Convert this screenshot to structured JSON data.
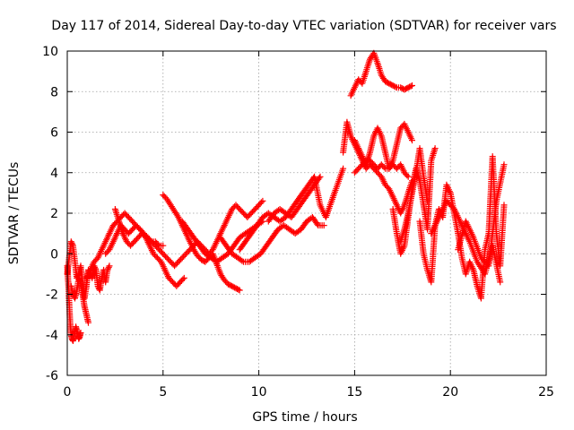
{
  "chart_data": {
    "type": "scatter",
    "title": "Day 117 of 2014, Sidereal Day-to-day VTEC variation (SDTVAR) for receiver vars",
    "xlabel": "GPS time / hours",
    "ylabel": "SDTVAR / TECUs",
    "xlim": [
      0,
      25
    ],
    "ylim": [
      -6,
      10
    ],
    "xticks": [
      0,
      5,
      10,
      15,
      20,
      25
    ],
    "yticks": [
      -6,
      -4,
      -2,
      0,
      2,
      4,
      6,
      8,
      10
    ],
    "xtick_labels": [
      "0",
      "5",
      "10",
      "15",
      "20",
      "25"
    ],
    "ytick_labels": [
      "-6",
      "-4",
      "-2",
      "0",
      "2",
      "4",
      "6",
      "8",
      "10"
    ],
    "grid": true,
    "marker": "+",
    "series": [
      {
        "name": "vars",
        "color": "#ff0000",
        "tracks": [
          {
            "x": [
              0.0,
              0.1,
              0.2,
              0.3,
              0.4,
              0.5,
              0.6,
              0.7,
              0.8,
              0.9,
              1.0,
              1.1,
              1.2,
              1.3,
              1.4,
              1.5,
              1.6,
              1.7,
              1.8,
              1.9,
              2.0,
              2.1,
              2.2
            ],
            "y": [
              -1.0,
              -0.2,
              0.6,
              0.4,
              -0.4,
              -1.2,
              -1.0,
              -0.6,
              -1.4,
              -2.2,
              -1.6,
              -0.8,
              -1.0,
              -1.2,
              -0.6,
              -0.8,
              -1.6,
              -1.8,
              -1.2,
              -0.8,
              -1.4,
              -0.8,
              -0.6
            ]
          },
          {
            "x": [
              0.0,
              0.05,
              0.1,
              0.15,
              0.2,
              0.25,
              0.3,
              0.35,
              0.4,
              0.45,
              0.5,
              0.55,
              0.6,
              0.65,
              0.7
            ],
            "y": [
              -0.6,
              -1.4,
              -2.4,
              -3.4,
              -4.0,
              -4.2,
              -4.3,
              -4.1,
              -3.8,
              -3.6,
              -3.8,
              -4.0,
              -4.2,
              -4.1,
              -3.9
            ]
          },
          {
            "x": [
              0.2,
              0.3,
              0.4,
              0.5,
              0.6,
              0.7,
              0.8,
              0.9,
              1.0,
              1.1
            ],
            "y": [
              -1.6,
              -2.0,
              -2.2,
              -1.8,
              -1.2,
              -1.4,
              -2.0,
              -2.6,
              -3.0,
              -3.4
            ]
          },
          {
            "x": [
              1.0,
              1.2,
              1.4,
              1.6,
              1.8,
              2.0,
              2.2,
              2.4,
              2.6,
              2.8,
              3.0,
              3.2,
              3.4,
              3.6,
              3.8,
              4.0,
              4.2,
              4.4,
              4.6,
              4.8,
              5.0,
              5.2,
              5.4,
              5.6,
              5.8,
              6.0,
              6.2,
              6.4,
              6.6,
              6.8,
              7.0,
              7.2,
              7.4,
              7.6,
              7.8,
              8.0,
              8.2,
              8.4,
              8.6,
              8.8,
              9.0,
              9.2,
              9.4,
              9.6,
              9.8,
              10.0,
              10.2
            ],
            "y": [
              -1.2,
              -0.8,
              -0.4,
              -0.2,
              0.2,
              0.6,
              1.0,
              1.4,
              1.6,
              1.8,
              2.0,
              1.8,
              1.6,
              1.4,
              1.2,
              1.0,
              0.8,
              0.6,
              0.4,
              0.2,
              0.0,
              -0.2,
              -0.4,
              -0.6,
              -0.4,
              -0.2,
              0.0,
              0.2,
              0.4,
              0.6,
              0.4,
              0.2,
              0.0,
              0.2,
              0.6,
              1.0,
              1.4,
              1.8,
              2.2,
              2.4,
              2.2,
              2.0,
              1.8,
              2.0,
              2.2,
              2.4,
              2.6
            ]
          },
          {
            "x": [
              2.5,
              2.7,
              2.9,
              3.1,
              3.3,
              3.5,
              3.7,
              3.9,
              4.1,
              4.3,
              4.5,
              4.7,
              4.9,
              5.1,
              5.3,
              5.5,
              5.7,
              5.9,
              6.1
            ],
            "y": [
              2.2,
              1.6,
              1.0,
              0.6,
              0.4,
              0.6,
              0.8,
              1.0,
              0.8,
              0.4,
              0.0,
              -0.2,
              -0.4,
              -0.8,
              -1.2,
              -1.4,
              -1.6,
              -1.4,
              -1.2
            ]
          },
          {
            "x": [
              2.0,
              2.2,
              2.4,
              2.6,
              2.8,
              3.0,
              3.2,
              3.4,
              3.6,
              3.8,
              4.0,
              4.2,
              4.4,
              4.6,
              4.8,
              5.0
            ],
            "y": [
              0.0,
              0.2,
              0.6,
              1.0,
              1.4,
              1.2,
              1.0,
              1.2,
              1.4,
              1.2,
              1.0,
              0.8,
              0.6,
              0.6,
              0.4,
              0.4
            ]
          },
          {
            "x": [
              5.0,
              5.2,
              5.4,
              5.6,
              5.8,
              6.0,
              6.2,
              6.4,
              6.6,
              6.8,
              7.0,
              7.2,
              7.4,
              7.6,
              7.8,
              8.0,
              8.2,
              8.4,
              8.6,
              8.8,
              9.0
            ],
            "y": [
              2.9,
              2.7,
              2.4,
              2.1,
              1.8,
              1.4,
              1.0,
              0.6,
              0.2,
              -0.1,
              -0.3,
              -0.4,
              -0.2,
              0.0,
              -0.5,
              -1.0,
              -1.3,
              -1.5,
              -1.6,
              -1.7,
              -1.8
            ]
          },
          {
            "x": [
              6.0,
              6.3,
              6.6,
              6.9,
              7.2,
              7.5,
              7.8,
              8.1,
              8.4,
              8.7,
              9.0,
              9.3,
              9.6,
              9.9,
              10.2
            ],
            "y": [
              1.6,
              1.2,
              0.8,
              0.4,
              0.0,
              -0.2,
              -0.4,
              -0.2,
              0.0,
              0.4,
              0.8,
              1.0,
              1.2,
              1.4,
              1.6
            ]
          },
          {
            "x": [
              8.0,
              8.3,
              8.6,
              8.9,
              9.2,
              9.5,
              9.8,
              10.1,
              10.4,
              10.7,
              11.0,
              11.3,
              11.6,
              11.9,
              12.2,
              12.5,
              12.8,
              13.1,
              13.4
            ],
            "y": [
              0.8,
              0.4,
              0.0,
              -0.2,
              -0.4,
              -0.4,
              -0.2,
              0.0,
              0.4,
              0.8,
              1.2,
              1.4,
              1.2,
              1.0,
              1.2,
              1.6,
              1.8,
              1.4,
              1.4
            ]
          },
          {
            "x": [
              9.0,
              9.3,
              9.6,
              9.9,
              10.2,
              10.5,
              10.8,
              11.1,
              11.4,
              11.7,
              12.0,
              12.3,
              12.6,
              12.9,
              13.2,
              13.5,
              13.8,
              14.1,
              14.4
            ],
            "y": [
              0.2,
              0.6,
              1.0,
              1.4,
              1.8,
              2.0,
              1.8,
              1.6,
              1.8,
              2.2,
              2.6,
              3.0,
              3.4,
              3.8,
              2.4,
              1.8,
              2.6,
              3.4,
              4.2
            ]
          },
          {
            "x": [
              10.5,
              10.8,
              11.1,
              11.4,
              11.7,
              12.0,
              12.3,
              12.6,
              12.9,
              13.2
            ],
            "y": [
              1.6,
              2.0,
              2.2,
              2.0,
              1.8,
              2.2,
              2.6,
              3.0,
              3.4,
              3.8
            ]
          },
          {
            "x": [
              14.4,
              14.6,
              14.8,
              15.0,
              15.2,
              15.4,
              15.6,
              15.8,
              16.0,
              16.2,
              16.4,
              16.6,
              16.8,
              17.0,
              17.2,
              17.4,
              17.6,
              17.8,
              18.0
            ],
            "y": [
              5.0,
              6.5,
              5.8,
              5.4,
              5.0,
              4.6,
              4.2,
              4.4,
              4.2,
              4.0,
              3.8,
              3.4,
              3.2,
              2.8,
              2.4,
              2.0,
              2.4,
              3.0,
              3.6
            ]
          },
          {
            "x": [
              15.0,
              15.2,
              15.4,
              15.6,
              15.8,
              16.0,
              16.2,
              16.4,
              16.6,
              16.8,
              17.0,
              17.2,
              17.4,
              17.6,
              17.8
            ],
            "y": [
              4.0,
              4.2,
              4.4,
              4.6,
              4.6,
              4.4,
              4.2,
              4.4,
              4.2,
              4.2,
              4.4,
              4.2,
              4.4,
              4.0,
              3.8
            ]
          },
          {
            "x": [
              15.0,
              15.2,
              15.4,
              15.6,
              15.8,
              16.0,
              16.2,
              16.4,
              16.6,
              16.8,
              17.0,
              17.2,
              17.4,
              17.6,
              17.8,
              18.0
            ],
            "y": [
              5.6,
              5.2,
              4.8,
              4.4,
              5.0,
              5.8,
              6.2,
              5.8,
              5.0,
              4.2,
              4.6,
              5.4,
              6.2,
              6.4,
              6.0,
              5.6
            ]
          },
          {
            "x": [
              14.8,
              15.0,
              15.2,
              15.4,
              15.6,
              15.8,
              16.0,
              16.2,
              16.4,
              16.6,
              16.8,
              17.0,
              17.2,
              17.4,
              17.6,
              17.8,
              18.0
            ],
            "y": [
              7.8,
              8.2,
              8.6,
              8.4,
              9.0,
              9.6,
              9.9,
              9.4,
              8.8,
              8.5,
              8.4,
              8.3,
              8.2,
              8.2,
              8.1,
              8.2,
              8.3
            ]
          },
          {
            "x": [
              17.0,
              17.2,
              17.4,
              17.6,
              17.8,
              18.0,
              18.2,
              18.4,
              18.6,
              18.8,
              19.0,
              19.2
            ],
            "y": [
              2.2,
              1.0,
              0.0,
              0.4,
              1.8,
              3.2,
              4.2,
              3.6,
              2.4,
              1.2,
              4.6,
              5.2
            ]
          },
          {
            "x": [
              17.4,
              17.6,
              17.8,
              18.0,
              18.2,
              18.4,
              18.6,
              18.8
            ],
            "y": [
              0.6,
              1.2,
              2.0,
              3.0,
              4.0,
              5.2,
              3.8,
              2.6
            ]
          },
          {
            "x": [
              18.4,
              18.6,
              18.8,
              19.0,
              19.2,
              19.4,
              19.6,
              19.8,
              20.0,
              20.2,
              20.4,
              20.6,
              20.8,
              21.0,
              21.2,
              21.4,
              21.6,
              21.8,
              22.0,
              22.2,
              22.4,
              22.6,
              22.8
            ],
            "y": [
              1.6,
              0.0,
              -0.8,
              -1.4,
              1.4,
              2.2,
              1.8,
              3.4,
              3.0,
              2.0,
              1.0,
              -0.2,
              -1.0,
              -0.4,
              -0.8,
              -1.6,
              -2.2,
              0.2,
              1.0,
              4.8,
              1.0,
              -0.6,
              2.4
            ]
          },
          {
            "x": [
              19.0,
              19.4,
              19.8,
              20.2,
              20.6,
              21.0,
              21.4,
              21.8,
              22.2,
              22.6
            ],
            "y": [
              1.0,
              1.8,
              2.6,
              2.2,
              1.4,
              0.6,
              -0.4,
              -1.0,
              0.4,
              -1.4
            ]
          },
          {
            "x": [
              20.4,
              20.8,
              21.2,
              21.6,
              22.0,
              22.4,
              22.8
            ],
            "y": [
              0.2,
              1.6,
              0.8,
              -0.2,
              -0.6,
              2.6,
              4.4
            ]
          }
        ]
      }
    ]
  }
}
